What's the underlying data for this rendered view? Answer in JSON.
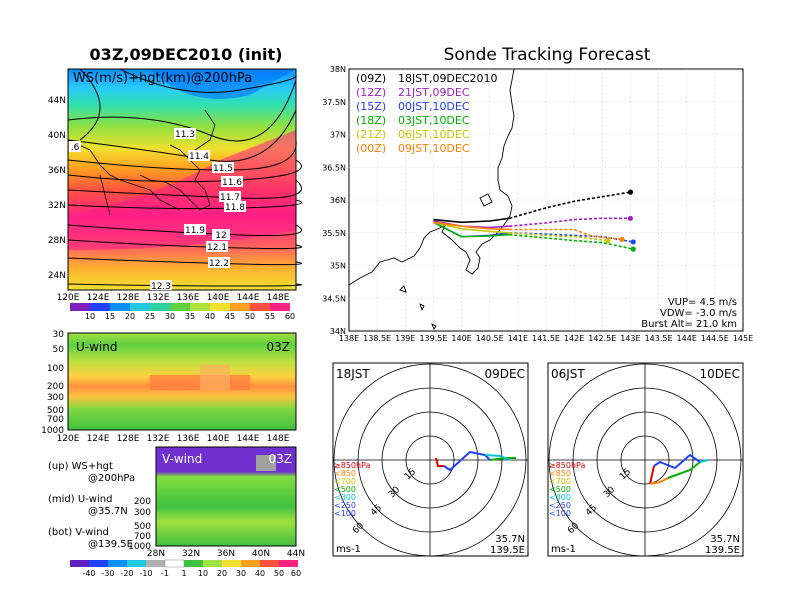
{
  "left": {
    "title": "03Z,09DEC2010 (init)",
    "map": {
      "label": "WS(m/s)+hgt(km)@200hPa",
      "lat_ticks": [
        "44N",
        "40N",
        "36N",
        "32N",
        "28N",
        "24N"
      ],
      "lon_ticks": [
        "120E",
        "124E",
        "128E",
        "132E",
        "136E",
        "140E",
        "144E",
        "148E"
      ],
      "contour_labels": [
        "11.3",
        "11.4",
        "11.5",
        "11.6",
        "11.7",
        "11.8",
        "11.9",
        "12",
        "12.1",
        "12.2",
        "12.3",
        ".6"
      ],
      "colorbar_ticks": [
        "10",
        "15",
        "20",
        "25",
        "30",
        "35",
        "40",
        "45",
        "50",
        "55",
        "60"
      ]
    },
    "uwind": {
      "label": "U-wind",
      "time": "03Z",
      "y_ticks": [
        "30",
        "50",
        "100",
        "200",
        "300",
        "500",
        "700",
        "1000"
      ],
      "x_ticks": [
        "120E",
        "124E",
        "128E",
        "132E",
        "136E",
        "140E",
        "144E",
        "148E"
      ]
    },
    "vwind": {
      "label": "V-wind",
      "time": "03Z",
      "y_ticks": [
        "200",
        "300",
        "500",
        "700",
        "1000"
      ],
      "x_ticks": [
        "28N",
        "32N",
        "36N",
        "40N",
        "44N"
      ]
    },
    "notes": [
      {
        "a": "(up) WS+hgt",
        "b": "@200hPa"
      },
      {
        "a": "(mid) U-wind",
        "b": "@35.7N"
      },
      {
        "a": "(bot) V-wind",
        "b": "@139.5E"
      }
    ],
    "bottom_colorbar_ticks": [
      "-40",
      "-30",
      "-20",
      "-10",
      "-1",
      "1",
      "10",
      "20",
      "30",
      "40",
      "50",
      "60"
    ]
  },
  "right": {
    "title": "Sonde Tracking Forecast",
    "legend": [
      {
        "z": "(09Z)",
        "t": "18JST,09DEC2010",
        "color": "#000000"
      },
      {
        "z": "(12Z)",
        "t": "21JST,09DEC",
        "color": "#a020c0"
      },
      {
        "z": "(15Z)",
        "t": "00JST,10DEC",
        "color": "#2040ff"
      },
      {
        "z": "(18Z)",
        "t": "03JST,10DEC",
        "color": "#00b000"
      },
      {
        "z": "(21Z)",
        "t": "06JST,10DEC",
        "color": "#c8c800"
      },
      {
        "z": "(00Z)",
        "t": "09JST,10DEC",
        "color": "#ff8000"
      }
    ],
    "lat_ticks": [
      "38N",
      "37.5N",
      "37N",
      "36.5N",
      "36N",
      "35.5N",
      "35N",
      "34.5N",
      "34N"
    ],
    "lon_ticks": [
      "138E",
      "138.5E",
      "139E",
      "139.5E",
      "140E",
      "140.5E",
      "141E",
      "141.5E",
      "142E",
      "142.5E",
      "143E",
      "143.5E",
      "144E",
      "144.5E",
      "145E"
    ],
    "params": [
      "VUP= 4.5 m/s",
      "VDW= -3.0 m/s",
      "Burst Alt= 21.0 km"
    ],
    "polar1": {
      "left": "18JST",
      "right": "09DEC",
      "unit": "ms-1",
      "loc1": "35.7N",
      "loc2": "139.5E",
      "rings": [
        "15",
        "30",
        "45",
        "60"
      ]
    },
    "polar2": {
      "left": "06JST",
      "right": "10DEC",
      "unit": "ms-1",
      "loc1": "35.7N",
      "loc2": "139.5E",
      "rings": [
        "15",
        "30",
        "45",
        "60"
      ]
    },
    "level_legend": [
      {
        "t": "≥850hPa",
        "color": "#e00000"
      },
      {
        "t": "<850",
        "color": "#ff8000"
      },
      {
        "t": "<700",
        "color": "#c8c800"
      },
      {
        "t": "<500",
        "color": "#00b000"
      },
      {
        "t": "<300",
        "color": "#00c8c8"
      },
      {
        "t": "<250",
        "color": "#2040ff"
      },
      {
        "t": "<100",
        "color": "#2040ff"
      }
    ]
  },
  "chart_data": [
    {
      "type": "line",
      "title": "Sonde Tracking Forecast",
      "xlim": [
        138,
        145
      ],
      "ylim": [
        34,
        38
      ],
      "series": [
        {
          "name": "(09Z) 18JST,09DEC2010",
          "color": "#000000",
          "x": [
            139.5,
            140.0,
            140.5,
            140.85,
            141.5,
            142.0,
            142.5,
            143.0
          ],
          "y": [
            35.7,
            35.66,
            35.68,
            35.72,
            35.88,
            35.98,
            36.05,
            36.12
          ]
        },
        {
          "name": "(12Z) 21JST,09DEC",
          "color": "#a020c0",
          "x": [
            139.5,
            140.0,
            140.5,
            140.85,
            141.5,
            142.0,
            142.5,
            143.0
          ],
          "y": [
            35.68,
            35.6,
            35.58,
            35.6,
            35.65,
            35.7,
            35.72,
            35.72
          ]
        },
        {
          "name": "(15Z) 00JST,10DEC",
          "color": "#2040ff",
          "x": [
            139.5,
            140.0,
            140.5,
            140.85,
            141.5,
            142.0,
            142.5,
            143.05
          ],
          "y": [
            35.66,
            35.44,
            35.46,
            35.5,
            35.48,
            35.46,
            35.44,
            35.36
          ]
        },
        {
          "name": "(18Z) 03JST,10DEC",
          "color": "#00b000",
          "x": [
            139.5,
            140.0,
            140.5,
            140.85,
            141.5,
            142.0,
            142.5,
            143.05
          ],
          "y": [
            35.66,
            35.44,
            35.45,
            35.47,
            35.42,
            35.38,
            35.35,
            35.25
          ]
        },
        {
          "name": "(21Z) 06JST,10DEC",
          "color": "#c8c800",
          "x": [
            139.5,
            140.0,
            140.5,
            140.85,
            141.5,
            142.0,
            142.6
          ],
          "y": [
            35.66,
            35.56,
            35.52,
            35.5,
            35.46,
            35.44,
            35.38
          ]
        },
        {
          "name": "(00Z) 09JST,10DEC",
          "color": "#ff8000",
          "x": [
            139.5,
            140.0,
            140.5,
            140.85,
            141.5,
            142.0,
            142.3,
            142.85
          ],
          "y": [
            35.66,
            35.6,
            35.56,
            35.55,
            35.55,
            35.55,
            35.45,
            35.4
          ]
        }
      ]
    }
  ]
}
